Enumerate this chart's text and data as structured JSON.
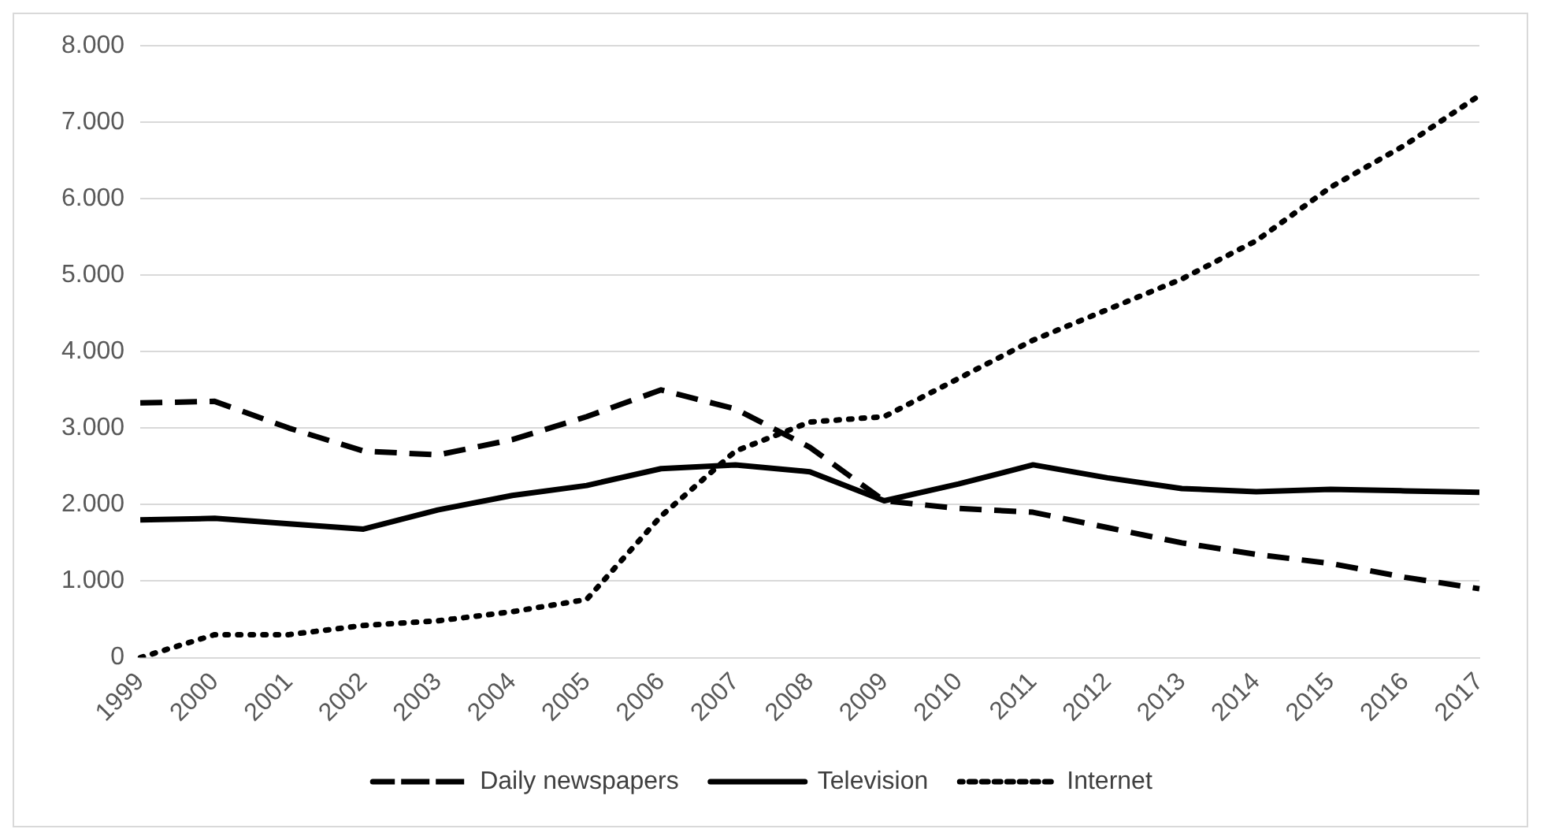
{
  "chart_data": {
    "type": "line",
    "categories": [
      "1999",
      "2000",
      "2001",
      "2002",
      "2003",
      "2004",
      "2005",
      "2006",
      "2007",
      "2008",
      "2009",
      "2010",
      "2011",
      "2012",
      "2013",
      "2014",
      "2015",
      "2016",
      "2017"
    ],
    "series": [
      {
        "name": "Daily newspapers",
        "color": "#000000",
        "line_style": "dashed",
        "values": [
          3330,
          3350,
          3000,
          2700,
          2650,
          2850,
          3150,
          3500,
          3250,
          2750,
          2050,
          1950,
          1900,
          1700,
          1500,
          1350,
          1230,
          1050,
          900
        ]
      },
      {
        "name": "Television",
        "color": "#000000",
        "line_style": "solid",
        "values": [
          1800,
          1820,
          1750,
          1680,
          1930,
          2120,
          2250,
          2470,
          2520,
          2430,
          2050,
          2270,
          2520,
          2350,
          2210,
          2170,
          2200,
          2180,
          2160
        ]
      },
      {
        "name": "Internet",
        "color": "#000000",
        "line_style": "dotted",
        "values": [
          0,
          300,
          300,
          420,
          480,
          600,
          760,
          1850,
          2700,
          3080,
          3150,
          3650,
          4150,
          4550,
          4950,
          5450,
          6150,
          6700,
          7350
        ]
      }
    ],
    "ylim": [
      0,
      8000
    ],
    "yticks": [
      {
        "value": 0,
        "label": "0"
      },
      {
        "value": 1000,
        "label": "1.000"
      },
      {
        "value": 2000,
        "label": "2.000"
      },
      {
        "value": 3000,
        "label": "3.000"
      },
      {
        "value": 4000,
        "label": "4.000"
      },
      {
        "value": 5000,
        "label": "5.000"
      },
      {
        "value": 6000,
        "label": "6.000"
      },
      {
        "value": 7000,
        "label": "7.000"
      },
      {
        "value": 8000,
        "label": "8.000"
      }
    ],
    "grid": "y",
    "legend": "bottom",
    "marker": "none"
  }
}
